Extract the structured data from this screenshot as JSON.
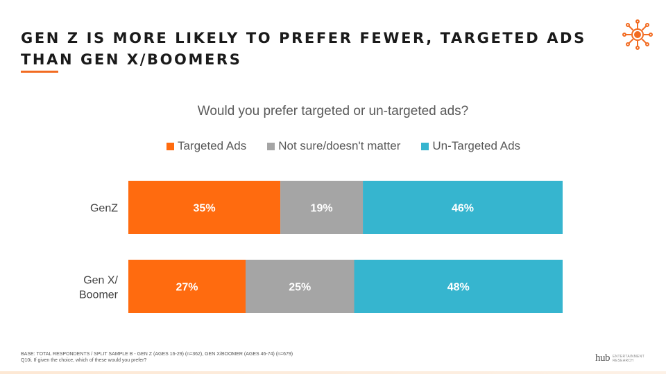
{
  "title": {
    "line1": "GEN Z IS MORE LIKELY TO PREFER FEWER, TARGETED ADS",
    "line2": "THAN GEN X/BOOMERS"
  },
  "colors": {
    "accent": "#f26b21",
    "targeted": "#ff6b0f",
    "not_sure": "#a5a5a5",
    "untargeted": "#36b5cf"
  },
  "chart_data": {
    "type": "bar",
    "orientation": "horizontal",
    "stacked": "100%",
    "title": "Would you prefer targeted or un-targeted ads?",
    "categories": [
      "GenZ",
      "Gen X/ Boomer"
    ],
    "series": [
      {
        "name": "Targeted Ads",
        "values": [
          35,
          27
        ],
        "labels": [
          "35%",
          "27%"
        ],
        "color": "#ff6b0f"
      },
      {
        "name": "Not sure/doesn't matter",
        "values": [
          19,
          25
        ],
        "labels": [
          "19%",
          "25%"
        ],
        "color": "#a5a5a5"
      },
      {
        "name": "Un-Targeted Ads",
        "values": [
          46,
          48
        ],
        "labels": [
          "46%",
          "48%"
        ],
        "color": "#36b5cf"
      }
    ],
    "legend_position": "top-center",
    "grid": false
  },
  "footnote": {
    "line1": "BASE: TOTAL RESPONDENTS / SPLIT SAMPLE B - GEN Z (AGES 16-29) (n=362), GEN X/BOOMER (AGES 46-74) (n=679)",
    "line2": "Q10i. If given the choice, which of these would you prefer?"
  },
  "logo": {
    "name": "hub",
    "sub1": "ENTERTAINMENT",
    "sub2": "RESEARCH"
  }
}
